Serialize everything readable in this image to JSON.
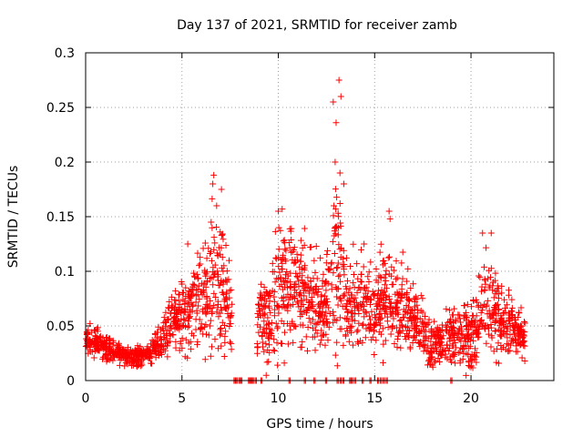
{
  "chart_data": {
    "type": "scatter",
    "title": "Day 137 of 2021, SRMTID for receiver zamb",
    "xlabel": "GPS time / hours",
    "ylabel": "SRMTID / TECUs",
    "xlim": [
      0,
      24.3
    ],
    "ylim": [
      0,
      0.3
    ],
    "xticks": [
      0,
      5,
      10,
      15,
      20
    ],
    "xtick_labels": [
      "0",
      "5",
      "10",
      "15",
      "20"
    ],
    "yticks": [
      0,
      0.05,
      0.1,
      0.15,
      0.2,
      0.25,
      0.3
    ],
    "ytick_labels": [
      "0",
      "0.05",
      "0.1",
      "0.15",
      "0.2",
      "0.25",
      "0.3"
    ],
    "grid": true,
    "marker": "+",
    "color": "#ff0000",
    "envelope": {
      "description": "approximate typical level and spread of SRMTID versus GPS hour",
      "x": [
        0,
        0.5,
        1,
        1.5,
        2,
        2.5,
        3,
        3.5,
        4,
        4.5,
        5,
        5.5,
        6,
        6.5,
        7,
        7.5,
        8,
        8.5,
        9,
        9.5,
        10,
        10.5,
        11,
        11.5,
        12,
        12.5,
        13,
        13.5,
        14,
        14.5,
        15,
        15.5,
        16,
        16.5,
        17,
        17.5,
        18,
        18.5,
        19,
        19.5,
        20,
        20.5,
        21,
        21.5,
        22,
        22.5,
        22.8
      ],
      "center": [
        0.038,
        0.035,
        0.03,
        0.026,
        0.024,
        0.022,
        0.023,
        0.027,
        0.04,
        0.055,
        0.06,
        0.068,
        0.075,
        0.085,
        0.095,
        0.07,
        0.0,
        0.0,
        0.06,
        0.055,
        0.085,
        0.09,
        0.08,
        0.08,
        0.075,
        0.065,
        0.12,
        0.07,
        0.07,
        0.075,
        0.068,
        0.072,
        0.07,
        0.065,
        0.055,
        0.045,
        0.035,
        0.035,
        0.04,
        0.04,
        0.04,
        0.065,
        0.07,
        0.06,
        0.05,
        0.045,
        0.04
      ],
      "spread": [
        0.012,
        0.01,
        0.01,
        0.008,
        0.008,
        0.008,
        0.008,
        0.01,
        0.012,
        0.02,
        0.025,
        0.03,
        0.035,
        0.045,
        0.05,
        0.03,
        0.0,
        0.0,
        0.025,
        0.03,
        0.05,
        0.05,
        0.035,
        0.035,
        0.035,
        0.03,
        0.08,
        0.035,
        0.03,
        0.03,
        0.035,
        0.04,
        0.035,
        0.03,
        0.025,
        0.022,
        0.018,
        0.018,
        0.02,
        0.02,
        0.025,
        0.04,
        0.04,
        0.03,
        0.02,
        0.018,
        0.015
      ]
    },
    "peaks": [
      {
        "x": 6.65,
        "y": 0.188
      },
      {
        "x": 6.6,
        "y": 0.18
      },
      {
        "x": 7.05,
        "y": 0.175
      },
      {
        "x": 6.8,
        "y": 0.16
      },
      {
        "x": 10.0,
        "y": 0.155
      },
      {
        "x": 10.2,
        "y": 0.157
      },
      {
        "x": 12.85,
        "y": 0.255
      },
      {
        "x": 13.0,
        "y": 0.236
      },
      {
        "x": 13.15,
        "y": 0.275
      },
      {
        "x": 13.25,
        "y": 0.26
      },
      {
        "x": 12.95,
        "y": 0.2
      },
      {
        "x": 13.2,
        "y": 0.19
      },
      {
        "x": 13.4,
        "y": 0.18
      },
      {
        "x": 15.75,
        "y": 0.155
      },
      {
        "x": 15.8,
        "y": 0.148
      },
      {
        "x": 20.6,
        "y": 0.135
      },
      {
        "x": 21.05,
        "y": 0.135
      },
      {
        "x": 14.45,
        "y": 0.125
      },
      {
        "x": 5.3,
        "y": 0.125
      },
      {
        "x": 11.65,
        "y": 0.122
      }
    ],
    "zero_points_x": [
      7.7,
      7.8,
      7.95,
      8.05,
      8.45,
      8.55,
      8.65,
      8.8,
      9.1,
      10.55,
      11.35,
      11.85,
      12.45,
      13.05,
      13.2,
      13.35,
      13.7,
      13.8,
      13.95,
      14.35,
      14.75,
      15.15,
      15.3,
      15.45,
      15.6,
      18.95
    ]
  }
}
